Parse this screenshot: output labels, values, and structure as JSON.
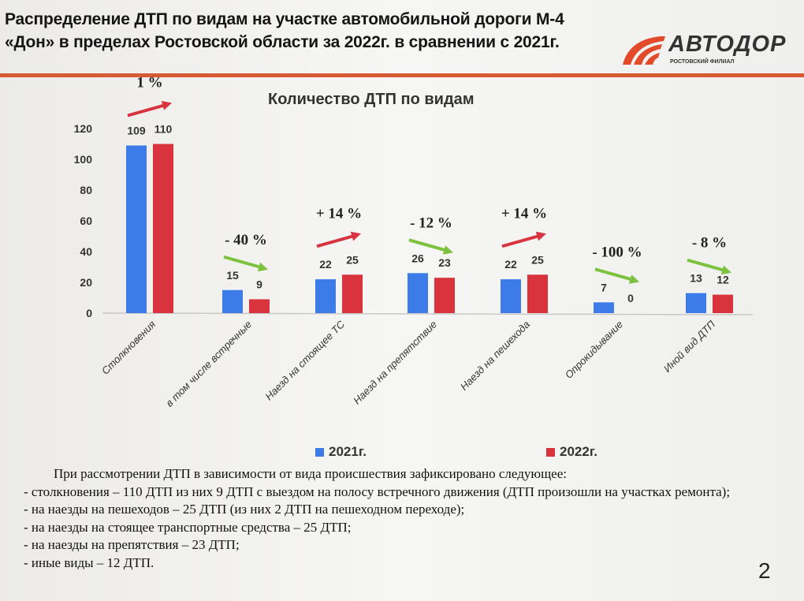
{
  "header": {
    "title": "Распределение ДТП по видам на участке автомобильной дороги М-4 «Дон» в пределах Ростовской области за 2022г. в сравнении с 2021г.",
    "logo_text": "АВТОДОР",
    "logo_subtext": "РОСТОВСКИЙ ФИЛИАЛ"
  },
  "colors": {
    "series_2021": "#3d7ce8",
    "series_2022": "#d9333d",
    "arrow_up": "#d8333f",
    "arrow_down": "#7dc23f",
    "accent_rule": "#d85a34"
  },
  "chart_data": {
    "type": "bar",
    "title": "Количество ДТП по видам",
    "categories": [
      "Столкновения",
      "в том числе встречные",
      "Наезд на стоящее ТС",
      "Наезд на препятствие",
      "Наезд на пешехода",
      "Опрокидывание",
      "Иной вид ДТП"
    ],
    "series": [
      {
        "name": "2021г.",
        "values": [
          109,
          15,
          22,
          26,
          22,
          7,
          13
        ]
      },
      {
        "name": "2022г.",
        "values": [
          110,
          9,
          25,
          23,
          25,
          0,
          12
        ]
      }
    ],
    "ylim": [
      0,
      120
    ],
    "yticks": [
      "0",
      "20",
      "40",
      "60",
      "80",
      "100",
      "120"
    ],
    "annotations": [
      {
        "label": "1 %",
        "direction": "up"
      },
      {
        "label": "- 40 %",
        "direction": "down"
      },
      {
        "label": "+ 14 %",
        "direction": "up"
      },
      {
        "label": "- 12 %",
        "direction": "down"
      },
      {
        "label": "+ 14 %",
        "direction": "up"
      },
      {
        "label": "- 100 %",
        "direction": "down"
      },
      {
        "label": "- 8 %",
        "direction": "down"
      }
    ],
    "grid": false,
    "legend": "bottom"
  },
  "text": {
    "lines": [
      "При рассмотрении ДТП в зависимости от вида происшествия зафиксировано следующее:",
      "- столкновения – 110 ДТП из них 9 ДТП с выездом на полосу встречного движения (ДТП произошли на участках ремонта);",
      " - на наезды на пешеходов – 25 ДТП (из них 2 ДТП на пешеходном переходе);",
      "- на наезды на стоящее транспортные средства – 25 ДТП;",
      "- на наезды на препятствия – 23 ДТП;",
      "- иные виды – 12 ДТП."
    ],
    "page_number": "2"
  }
}
